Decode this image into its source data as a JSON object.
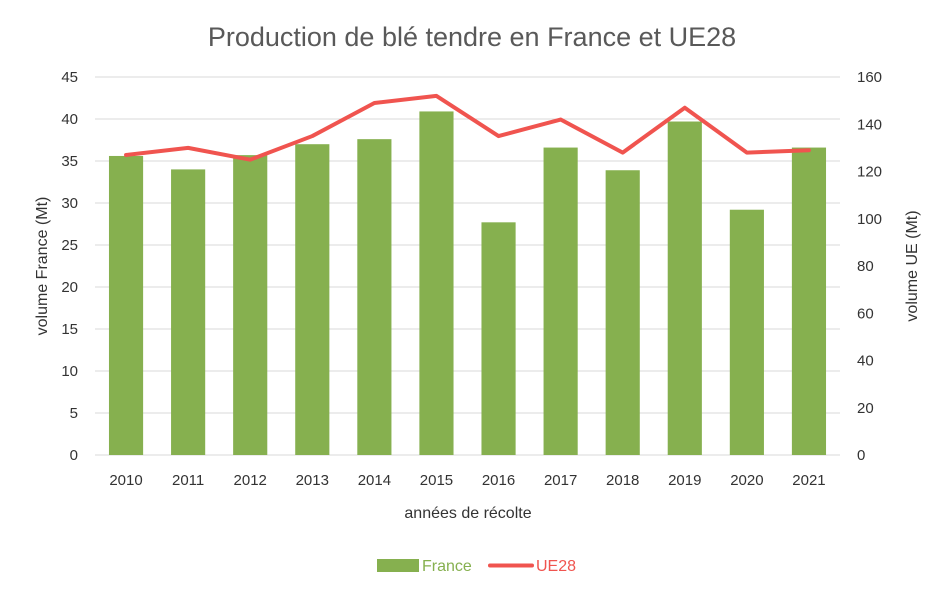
{
  "chart_data": {
    "type": "bar",
    "title": "Production de blé tendre en France et UE28",
    "xlabel": "années de récolte",
    "ylabel": "volume France (Mt)",
    "y2label": "volume UE (Mt)",
    "categories": [
      "2010",
      "2011",
      "2012",
      "2013",
      "2014",
      "2015",
      "2016",
      "2017",
      "2018",
      "2019",
      "2020",
      "2021"
    ],
    "ylim": [
      0,
      45
    ],
    "y2lim": [
      0,
      160
    ],
    "yticks": [
      "0",
      "5",
      "10",
      "15",
      "20",
      "25",
      "30",
      "35",
      "40",
      "45"
    ],
    "y2ticks": [
      "0",
      "20",
      "40",
      "60",
      "80",
      "100",
      "120",
      "140",
      "160"
    ],
    "grid": true,
    "legend_position": "bottom",
    "series": [
      {
        "name": "France",
        "type": "bar",
        "axis": "left",
        "color": "#86b04f",
        "values": [
          35.6,
          34.0,
          35.7,
          37.0,
          37.6,
          40.9,
          27.7,
          36.6,
          33.9,
          39.7,
          29.2,
          36.6
        ]
      },
      {
        "name": "UE28",
        "type": "line",
        "axis": "right",
        "color": "#f0544f",
        "values": [
          127,
          130,
          125,
          135,
          149,
          152,
          135,
          142,
          128,
          147,
          128,
          129
        ]
      }
    ]
  }
}
